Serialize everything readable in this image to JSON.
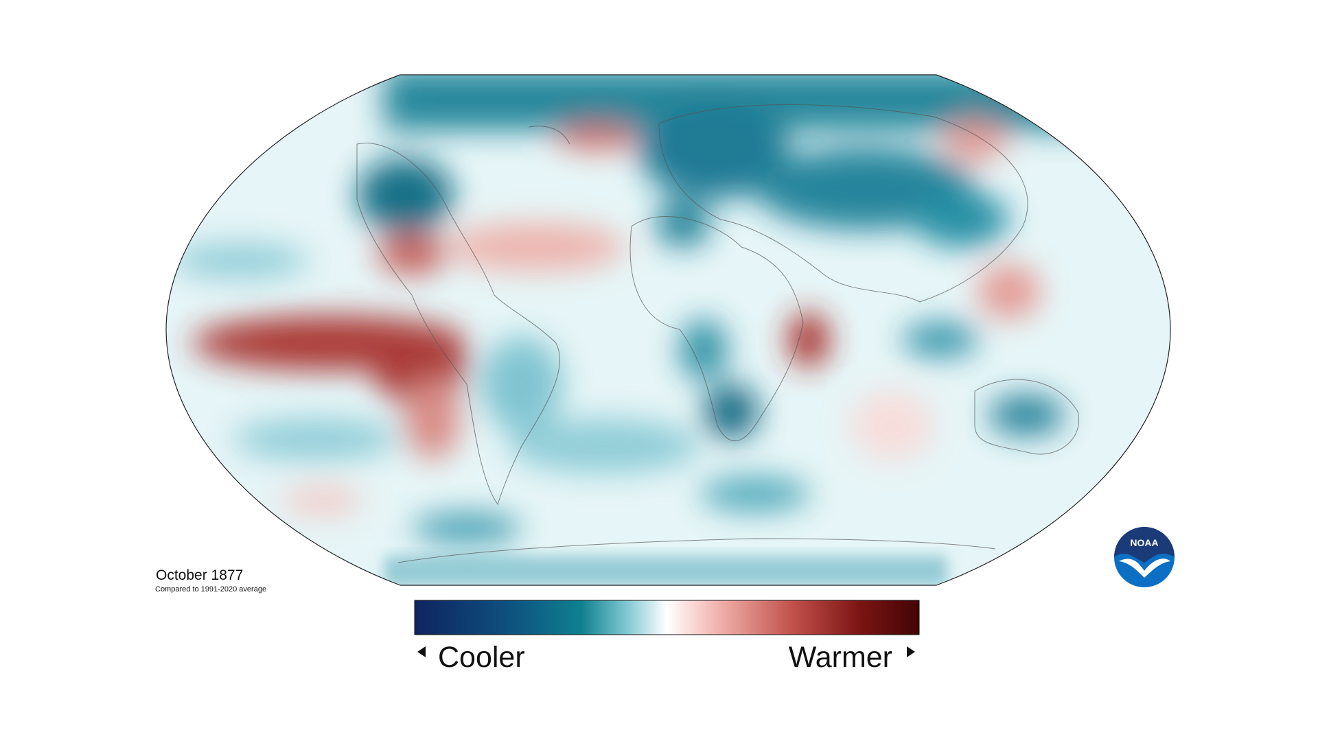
{
  "title": "October 1877",
  "subtitle": "Compared to 1991-2020 average",
  "legend": {
    "low_label": "Cooler",
    "high_label": "Warmer"
  },
  "logo": {
    "text": "NOAA"
  }
}
